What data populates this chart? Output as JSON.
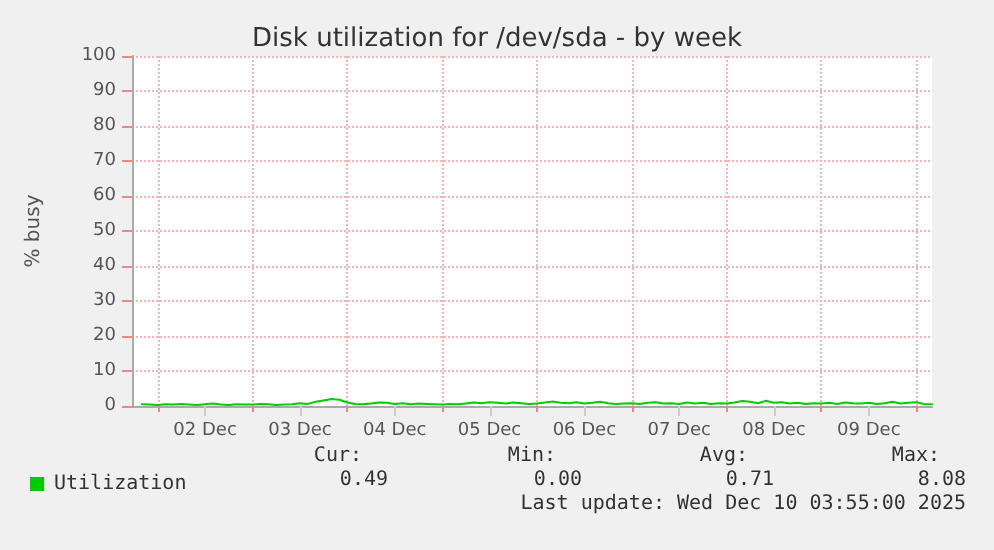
{
  "chart_data": {
    "type": "line",
    "title": "Disk utilization for /dev/sda - by week",
    "ylabel": "% busy",
    "xlim": [
      "2025-12-01T17:30",
      "2025-12-10T04:00"
    ],
    "xticks": [
      {
        "value": "2025-12-02T00:00",
        "label": null
      },
      {
        "value": "2025-12-02T12:00",
        "label": "02 Dec"
      },
      {
        "value": "2025-12-03T00:00",
        "label": null
      },
      {
        "value": "2025-12-03T12:00",
        "label": "03 Dec"
      },
      {
        "value": "2025-12-04T00:00",
        "label": null
      },
      {
        "value": "2025-12-04T12:00",
        "label": "04 Dec"
      },
      {
        "value": "2025-12-05T00:00",
        "label": null
      },
      {
        "value": "2025-12-05T12:00",
        "label": "05 Dec"
      },
      {
        "value": "2025-12-06T00:00",
        "label": null
      },
      {
        "value": "2025-12-06T12:00",
        "label": "06 Dec"
      },
      {
        "value": "2025-12-07T00:00",
        "label": null
      },
      {
        "value": "2025-12-07T12:00",
        "label": "07 Dec"
      },
      {
        "value": "2025-12-08T00:00",
        "label": null
      },
      {
        "value": "2025-12-08T12:00",
        "label": "08 Dec"
      },
      {
        "value": "2025-12-09T00:00",
        "label": null
      },
      {
        "value": "2025-12-09T12:00",
        "label": "09 Dec"
      },
      {
        "value": "2025-12-10T00:00",
        "label": null
      }
    ],
    "ylim": [
      0,
      100
    ],
    "yticks": [
      0,
      10,
      20,
      30,
      40,
      50,
      60,
      70,
      80,
      90,
      100
    ],
    "grid": true,
    "legend": "bottom left",
    "marker": "none",
    "line_style": "solid",
    "annotations": [
      "Cur:",
      "Min:",
      "Avg:",
      "Max:",
      "0.49",
      "0.00",
      "0.71",
      "8.08",
      "Last update: Wed Dec 10 03:55:00 2025"
    ],
    "x": [
      "2025-12-01T20:00",
      "2025-12-01T22:00",
      "2025-12-02T00:00",
      "2025-12-02T02:00",
      "2025-12-02T04:00",
      "2025-12-02T06:00",
      "2025-12-02T08:00",
      "2025-12-02T10:00",
      "2025-12-02T12:00",
      "2025-12-02T14:00",
      "2025-12-02T16:00",
      "2025-12-02T18:00",
      "2025-12-02T20:00",
      "2025-12-02T22:00",
      "2025-12-03T00:00",
      "2025-12-03T02:00",
      "2025-12-03T04:00",
      "2025-12-03T06:00",
      "2025-12-03T08:00",
      "2025-12-03T10:00",
      "2025-12-03T12:00",
      "2025-12-03T14:00",
      "2025-12-03T16:00",
      "2025-12-03T18:00",
      "2025-12-03T20:00",
      "2025-12-03T22:00",
      "2025-12-04T00:00",
      "2025-12-04T02:00",
      "2025-12-04T04:00",
      "2025-12-04T06:00",
      "2025-12-04T08:00",
      "2025-12-04T10:00",
      "2025-12-04T12:00",
      "2025-12-04T14:00",
      "2025-12-04T16:00",
      "2025-12-04T18:00",
      "2025-12-04T20:00",
      "2025-12-04T22:00",
      "2025-12-05T00:00",
      "2025-12-05T02:00",
      "2025-12-05T04:00",
      "2025-12-05T06:00",
      "2025-12-05T08:00",
      "2025-12-05T10:00",
      "2025-12-05T12:00",
      "2025-12-05T14:00",
      "2025-12-05T16:00",
      "2025-12-05T18:00",
      "2025-12-05T20:00",
      "2025-12-05T22:00",
      "2025-12-06T00:00",
      "2025-12-06T02:00",
      "2025-12-06T04:00",
      "2025-12-06T06:00",
      "2025-12-06T08:00",
      "2025-12-06T10:00",
      "2025-12-06T12:00",
      "2025-12-06T14:00",
      "2025-12-06T16:00",
      "2025-12-06T18:00",
      "2025-12-06T20:00",
      "2025-12-06T22:00",
      "2025-12-07T00:00",
      "2025-12-07T02:00",
      "2025-12-07T04:00",
      "2025-12-07T06:00",
      "2025-12-07T08:00",
      "2025-12-07T10:00",
      "2025-12-07T12:00",
      "2025-12-07T14:00",
      "2025-12-07T16:00",
      "2025-12-07T18:00",
      "2025-12-07T20:00",
      "2025-12-07T22:00",
      "2025-12-08T00:00",
      "2025-12-08T02:00",
      "2025-12-08T04:00",
      "2025-12-08T06:00",
      "2025-12-08T08:00",
      "2025-12-08T10:00",
      "2025-12-08T12:00",
      "2025-12-08T14:00",
      "2025-12-08T16:00",
      "2025-12-08T18:00",
      "2025-12-08T20:00",
      "2025-12-08T22:00",
      "2025-12-09T00:00",
      "2025-12-09T02:00",
      "2025-12-09T04:00",
      "2025-12-09T06:00",
      "2025-12-09T08:00",
      "2025-12-09T10:00",
      "2025-12-09T12:00",
      "2025-12-09T14:00",
      "2025-12-09T16:00",
      "2025-12-09T18:00",
      "2025-12-09T20:00",
      "2025-12-09T22:00",
      "2025-12-10T00:00",
      "2025-12-10T02:00",
      "2025-12-10T04:00"
    ],
    "series": [
      {
        "name": "Utilization",
        "color": "#00cc00",
        "values": [
          0.5,
          0.4,
          0.3,
          0.5,
          0.4,
          0.6,
          0.4,
          0.3,
          0.5,
          0.7,
          0.4,
          0.3,
          0.5,
          0.4,
          0.4,
          0.6,
          0.5,
          0.3,
          0.4,
          0.5,
          0.8,
          0.6,
          1.2,
          1.6,
          2.0,
          1.8,
          1.0,
          0.6,
          0.5,
          0.7,
          1.0,
          0.9,
          0.6,
          0.8,
          0.5,
          0.7,
          0.6,
          0.5,
          0.4,
          0.6,
          0.5,
          0.7,
          1.0,
          0.8,
          1.1,
          0.9,
          0.7,
          1.0,
          0.8,
          0.6,
          0.7,
          1.0,
          1.3,
          0.9,
          0.8,
          1.1,
          0.7,
          0.9,
          1.2,
          0.8,
          0.6,
          0.7,
          0.8,
          0.6,
          0.9,
          1.1,
          0.7,
          0.8,
          0.6,
          1.0,
          0.7,
          0.9,
          0.6,
          0.8,
          0.7,
          1.0,
          1.4,
          1.2,
          0.8,
          1.5,
          0.9,
          1.1,
          0.7,
          0.9,
          0.6,
          0.8,
          0.7,
          0.9,
          0.6,
          1.0,
          0.8,
          0.7,
          0.9,
          0.6,
          0.8,
          1.2,
          0.7,
          0.9,
          1.1,
          0.6,
          0.5
        ]
      }
    ]
  }
}
